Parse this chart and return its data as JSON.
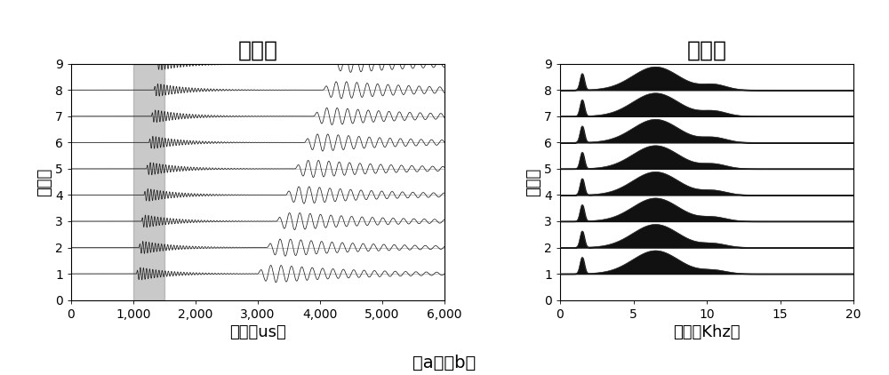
{
  "title_left": "波形图",
  "title_right": "频谱图",
  "xlabel_left": "时间（us）",
  "xlabel_right": "频率（Khz）",
  "ylabel": "接收器",
  "caption": "（a）（b）",
  "n_receivers": 9,
  "xlim_left": [
    0,
    6000
  ],
  "ylim_left": [
    0,
    9
  ],
  "xlim_right": [
    0,
    20
  ],
  "ylim_right": [
    0,
    9
  ],
  "xticks_left": [
    0,
    1000,
    2000,
    3000,
    4000,
    5000,
    6000
  ],
  "xtick_labels_left": [
    "0",
    "1,000",
    "2,000",
    "3,000",
    "4,000",
    "5,000",
    "6,000"
  ],
  "xticks_right": [
    0,
    5,
    10,
    15,
    20
  ],
  "yticks": [
    0,
    1,
    2,
    3,
    4,
    5,
    6,
    7,
    8,
    9
  ],
  "shade_xmin": 1000,
  "shade_xmax": 1500,
  "shade_color": "#888888",
  "shade_alpha": 0.45,
  "wave_color": "#222222",
  "spectrum_fill_color": "#111111",
  "spectrum_line_color": "#333333",
  "title_fontsize": 18,
  "label_fontsize": 13,
  "tick_fontsize": 10,
  "caption_fontsize": 14
}
